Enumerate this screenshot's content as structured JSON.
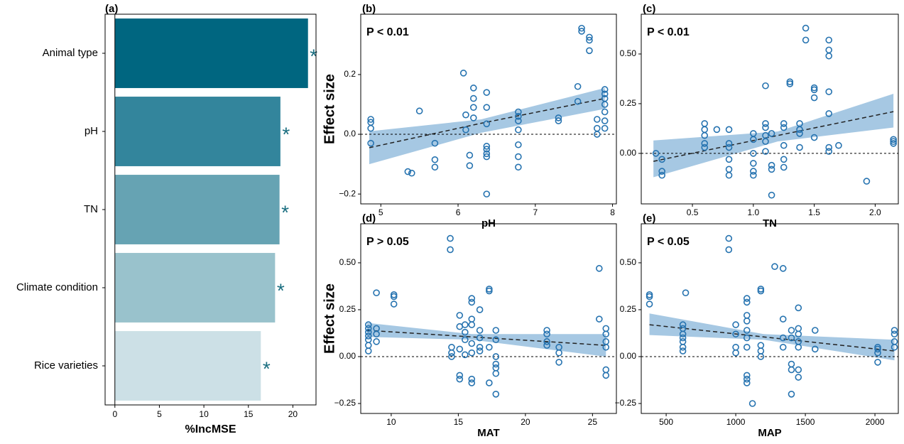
{
  "chart_data": [
    {
      "type": "bar",
      "orientation": "horizontal",
      "panel_label": "(a)",
      "categories": [
        "Animal  type",
        "pH",
        "TN",
        "Climate condition",
        "Rice varieties"
      ],
      "values": [
        21.7,
        18.6,
        18.5,
        18.0,
        16.4
      ],
      "colors": [
        "#006680",
        "#33859c",
        "#66a3b3",
        "#99c2cc",
        "#cce0e6"
      ],
      "markers": [
        "*",
        "*",
        "*",
        "*",
        "*"
      ],
      "marker_color": "#1a6e80",
      "xlabel": "%IncMSE",
      "xlim": [
        -1.1,
        22.6
      ],
      "xticks": [
        0,
        5,
        10,
        15,
        20
      ]
    },
    {
      "type": "scatter",
      "panel_label": "(b)",
      "annotation": "P < 0.01",
      "xlabel": "pH",
      "ylabel": "Effect size",
      "color": "#2673b0",
      "band_color": "#a6c8e3",
      "reference_line": 0,
      "x": [
        4.87,
        4.87,
        4.87,
        4.87,
        5.35,
        5.4,
        5.5,
        5.7,
        5.7,
        5.7,
        6.07,
        6.1,
        6.1,
        6.15,
        6.15,
        6.2,
        6.2,
        6.2,
        6.2,
        6.37,
        6.37,
        6.37,
        6.37,
        6.37,
        6.37,
        6.37,
        6.37,
        6.78,
        6.78,
        6.78,
        6.78,
        6.78,
        6.78,
        6.78,
        7.3,
        7.3,
        7.55,
        7.55,
        7.6,
        7.6,
        7.7,
        7.7,
        7.7,
        7.8,
        7.8,
        7.8,
        7.9,
        7.9,
        7.9,
        7.9,
        7.9,
        7.9,
        7.9
      ],
      "values": [
        0.05,
        0.04,
        0.02,
        -0.03,
        -0.125,
        -0.13,
        0.078,
        -0.03,
        -0.085,
        -0.11,
        0.205,
        0.065,
        0.015,
        -0.07,
        -0.105,
        0.155,
        0.12,
        0.09,
        0.055,
        0.14,
        0.09,
        0.035,
        -0.04,
        -0.05,
        -0.065,
        -0.075,
        -0.2,
        0.075,
        0.06,
        0.045,
        0.015,
        -0.035,
        -0.075,
        -0.11,
        0.055,
        0.045,
        0.16,
        0.11,
        0.355,
        0.345,
        0.325,
        0.315,
        0.28,
        0.05,
        0.02,
        0.0,
        0.15,
        0.135,
        0.12,
        0.1,
        0.075,
        0.045,
        0.02
      ],
      "fit": {
        "x": [
          4.85,
          6.3,
          7.9
        ],
        "y": [
          -0.045,
          0.037,
          0.12
        ],
        "ci_lower": [
          -0.1,
          0.005,
          0.085
        ],
        "ci_upper": [
          0.01,
          0.05,
          0.155
        ]
      },
      "xlim": [
        4.74,
        8.05
      ],
      "ylim": [
        -0.233,
        0.402
      ],
      "xticks": [
        5,
        6,
        7,
        8
      ],
      "yticks": [
        {
          "value": -0.2,
          "label": "−0.2"
        },
        {
          "value": 0,
          "label": "0.0"
        },
        0.2
      ]
    },
    {
      "type": "scatter",
      "panel_label": "(c)",
      "annotation": "P < 0.01",
      "xlabel": "TN",
      "color": "#2673b0",
      "band_color": "#a6c8e3",
      "reference_line": 0,
      "x": [
        0.2,
        0.25,
        0.25,
        0.25,
        0.6,
        0.6,
        0.6,
        0.6,
        0.6,
        0.7,
        0.8,
        0.8,
        0.8,
        0.8,
        0.8,
        0.8,
        1.0,
        1.0,
        1.0,
        1.0,
        1.0,
        1.0,
        1.1,
        1.1,
        1.1,
        1.1,
        1.1,
        1.1,
        1.15,
        1.15,
        1.15,
        1.15,
        1.25,
        1.25,
        1.25,
        1.25,
        1.25,
        1.3,
        1.3,
        1.38,
        1.38,
        1.38,
        1.38,
        1.43,
        1.43,
        1.5,
        1.5,
        1.5,
        1.5,
        1.62,
        1.62,
        1.62,
        1.62,
        1.62,
        1.62,
        1.62,
        1.7,
        1.93,
        2.15,
        2.15,
        2.15
      ],
      "values": [
        0.0,
        -0.03,
        -0.09,
        -0.11,
        0.15,
        0.12,
        0.09,
        0.05,
        0.03,
        0.12,
        0.05,
        0.03,
        -0.03,
        -0.08,
        -0.11,
        0.12,
        0.1,
        0.07,
        0.0,
        -0.05,
        -0.09,
        -0.11,
        0.34,
        0.15,
        0.13,
        0.09,
        0.06,
        0.01,
        -0.06,
        -0.08,
        -0.21,
        0.1,
        0.15,
        0.13,
        0.04,
        -0.03,
        -0.07,
        0.36,
        0.35,
        0.15,
        0.12,
        0.1,
        0.03,
        0.63,
        0.57,
        0.33,
        0.32,
        0.28,
        0.08,
        0.57,
        0.52,
        0.49,
        0.31,
        0.2,
        0.03,
        0.01,
        0.04,
        -0.14,
        0.07,
        0.06,
        0.05
      ],
      "fit": {
        "x": [
          0.18,
          1.2,
          2.15
        ],
        "y": [
          -0.04,
          0.09,
          0.21
        ],
        "ci_lower": [
          -0.12,
          0.06,
          0.13
        ],
        "ci_upper": [
          0.065,
          0.11,
          0.3
        ]
      },
      "xlim": [
        0.08,
        2.19
      ],
      "ylim": [
        -0.254,
        0.7
      ],
      "xticks": [
        0.5,
        {
          "value": 1,
          "label": "1.0"
        },
        1.5,
        {
          "value": 2,
          "label": "2.0"
        }
      ],
      "yticks": [
        {
          "value": 0,
          "label": "0.00"
        },
        0.25,
        {
          "value": 0.5,
          "label": "0.50"
        }
      ]
    },
    {
      "type": "scatter",
      "panel_label": "(d)",
      "annotation": "P > 0.05",
      "xlabel": "MAT",
      "ylabel": "Effect size",
      "color": "#2673b0",
      "band_color": "#a6c8e3",
      "reference_line": 0,
      "x": [
        8.3,
        8.3,
        8.3,
        8.3,
        8.3,
        8.3,
        8.3,
        8.9,
        8.9,
        8.9,
        8.9,
        10.2,
        10.2,
        10.2,
        14.4,
        14.4,
        14.5,
        14.5,
        14.5,
        15.1,
        15.1,
        15.1,
        15.1,
        15.1,
        15.5,
        15.5,
        15.5,
        15.5,
        16,
        16,
        16,
        16,
        16,
        16,
        16,
        16,
        16.6,
        16.6,
        16.6,
        16.6,
        16.6,
        17.3,
        17.3,
        17.3,
        17.3,
        17.8,
        17.8,
        17.8,
        17.8,
        17.8,
        17.8,
        17.8,
        21.6,
        21.6,
        21.6,
        21.6,
        22.5,
        22.5,
        22.5,
        25.5,
        25.5,
        26,
        26,
        26,
        26,
        26,
        26
      ],
      "values": [
        0.17,
        0.15,
        0.13,
        0.11,
        0.09,
        0.06,
        0.03,
        0.34,
        0.15,
        0.12,
        0.08,
        0.33,
        0.32,
        0.28,
        0.63,
        0.57,
        0.05,
        0.02,
        0.0,
        0.22,
        0.16,
        0.04,
        -0.1,
        -0.12,
        0.17,
        0.13,
        0.09,
        0.01,
        0.31,
        0.29,
        0.2,
        0.17,
        0.07,
        0.02,
        -0.12,
        -0.14,
        0.25,
        0.14,
        0.1,
        0.05,
        0.03,
        0.36,
        0.35,
        0.05,
        -0.14,
        0.14,
        0.09,
        0.0,
        -0.04,
        -0.06,
        -0.09,
        -0.2,
        0.14,
        0.12,
        0.08,
        0.06,
        0.05,
        0.02,
        -0.03,
        0.47,
        0.2,
        0.15,
        0.12,
        0.08,
        0.05,
        -0.07,
        -0.1
      ],
      "fit": {
        "x": [
          8.2,
          16,
          26
        ],
        "y": [
          0.14,
          0.105,
          0.06
        ],
        "ci_lower": [
          0.105,
          0.09,
          0.0
        ],
        "ci_upper": [
          0.18,
          0.12,
          0.12
        ]
      },
      "xlim": [
        7.73,
        26.78
      ],
      "ylim": [
        -0.303,
        0.708
      ],
      "xticks": [
        10,
        15,
        20,
        25
      ],
      "yticks": [
        {
          "value": -0.25,
          "label": "−0.25"
        },
        {
          "value": 0,
          "label": "0.00"
        },
        0.25,
        {
          "value": 0.5,
          "label": "0.50"
        }
      ]
    },
    {
      "type": "scatter",
      "panel_label": "(e)",
      "annotation": "P < 0.05",
      "xlabel": "MAP",
      "color": "#2673b0",
      "band_color": "#a6c8e3",
      "reference_line": 0,
      "x": [
        380,
        380,
        380,
        620,
        620,
        620,
        620,
        620,
        620,
        620,
        640,
        950,
        950,
        1000,
        1000,
        1000,
        1000,
        1080,
        1080,
        1080,
        1080,
        1080,
        1080,
        1080,
        1080,
        1080,
        1080,
        1120,
        1180,
        1180,
        1180,
        1180,
        1180,
        1280,
        1340,
        1340,
        1340,
        1340,
        1400,
        1400,
        1400,
        1400,
        1400,
        1450,
        1450,
        1450,
        1450,
        1450,
        1450,
        1450,
        1570,
        1570,
        2020,
        2020,
        2020,
        2020,
        2140,
        2140,
        2140,
        2140
      ],
      "values": [
        0.33,
        0.32,
        0.28,
        0.17,
        0.15,
        0.12,
        0.1,
        0.08,
        0.05,
        0.03,
        0.34,
        0.63,
        0.57,
        0.17,
        0.12,
        0.05,
        0.02,
        0.31,
        0.29,
        0.22,
        0.19,
        0.14,
        0.1,
        0.05,
        -0.1,
        -0.12,
        -0.14,
        -0.25,
        0.36,
        0.35,
        0.06,
        0.03,
        0.0,
        0.48,
        0.47,
        0.2,
        0.1,
        0.05,
        0.14,
        0.1,
        -0.04,
        -0.07,
        -0.2,
        0.26,
        0.15,
        0.12,
        0.08,
        0.05,
        -0.07,
        -0.11,
        0.14,
        0.04,
        0.05,
        0.04,
        0.02,
        -0.03,
        0.14,
        0.12,
        0.08,
        0.05
      ],
      "fit": {
        "x": [
          380,
          1200,
          2140
        ],
        "y": [
          0.17,
          0.105,
          0.03
        ],
        "ci_lower": [
          0.115,
          0.09,
          -0.02
        ],
        "ci_upper": [
          0.23,
          0.12,
          0.09
        ]
      },
      "xlim": [
        321,
        2168
      ],
      "ylim": [
        -0.303,
        0.708
      ],
      "xticks": [
        500,
        1000,
        1500,
        2000
      ],
      "yticks": [
        {
          "value": -0.25,
          "label": "−0.25"
        },
        {
          "value": 0,
          "label": "0.00"
        },
        0.25,
        {
          "value": 0.5,
          "label": "0.50"
        }
      ]
    }
  ]
}
